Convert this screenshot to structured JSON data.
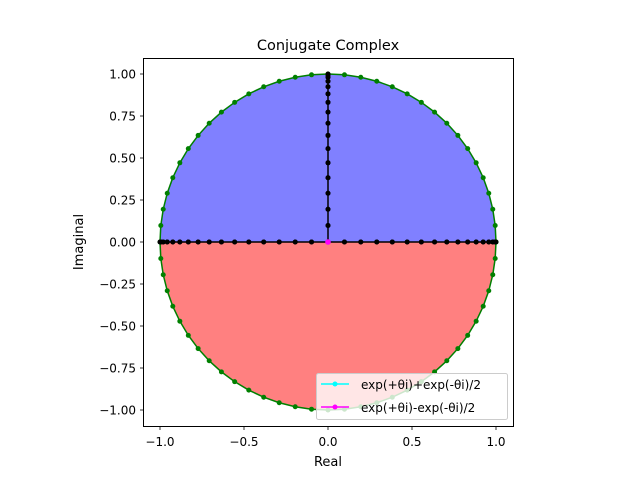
{
  "chart_data": {
    "type": "line",
    "title": "Conjugate Complex",
    "xlabel": "Real",
    "ylabel": "Imaginal",
    "xlim": [
      -1.1,
      1.1
    ],
    "ylim": [
      -1.1,
      1.1
    ],
    "aspect": "equal",
    "grid": false,
    "xticks": [
      -1.0,
      -0.5,
      0.0,
      0.5,
      1.0
    ],
    "xtick_labels": [
      "−1.0",
      "−0.5",
      "0.0",
      "0.5",
      "1.0"
    ],
    "yticks": [
      1.0,
      0.75,
      0.5,
      0.25,
      0.0,
      -0.25,
      -0.5,
      -0.75,
      -1.0
    ],
    "ytick_labels": [
      "1.00",
      "0.75",
      "0.50",
      "0.25",
      "0.00",
      "−0.25",
      "−0.50",
      "−0.75",
      "−1.00"
    ],
    "num_points": 64,
    "fills": [
      {
        "name": "upper-half-disc",
        "region": "Im >= 0",
        "color": "#8080ff"
      },
      {
        "name": "lower-half-disc",
        "region": "Im <= 0",
        "color": "#ff8080"
      }
    ],
    "series": [
      {
        "name": "unit circle exp(iθ)",
        "color": "#008000",
        "marker": "o",
        "shape": "circle radius 1",
        "in_legend": false
      },
      {
        "name": "cosθ on real axis",
        "color": "#000000",
        "marker": "o",
        "shape": "points (cosθ, 0)",
        "in_legend": false
      },
      {
        "name": "sinθ on imaginary axis",
        "color": "#000000",
        "marker": "o",
        "shape": "points (0, sinθ), θ in [0, π]",
        "in_legend": false
      },
      {
        "name": "exp(+θi)+exp(-θi)/2",
        "color": "#00ffff",
        "marker": "o",
        "in_legend": true
      },
      {
        "name": "exp(+θi)-exp(-θi)/2",
        "color": "#ff00ff",
        "marker": "o",
        "points": [
          [
            0,
            0
          ]
        ],
        "in_legend": true
      }
    ],
    "legend_position": "lower right",
    "legend": [
      {
        "label": "exp(+θi)+exp(-θi)/2",
        "color": "#00ffff"
      },
      {
        "label": "exp(+θi)-exp(-θi)/2",
        "color": "#ff00ff"
      }
    ]
  }
}
